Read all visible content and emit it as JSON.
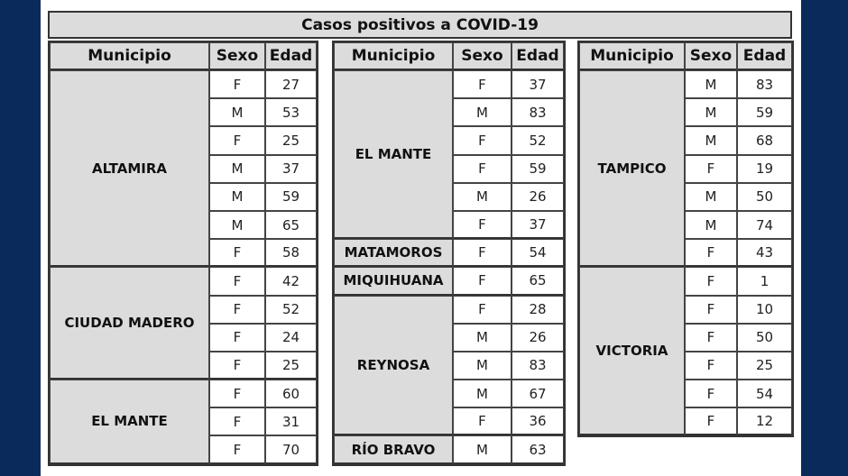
{
  "title": "Casos positivos a COVID-19",
  "headers": {
    "municipio": "Municipio",
    "sexo": "Sexo",
    "edad": "Edad"
  },
  "tables": [
    {
      "groups": [
        {
          "municipio": "ALTAMIRA",
          "rows": [
            [
              "F",
              "27"
            ],
            [
              "M",
              "53"
            ],
            [
              "F",
              "25"
            ],
            [
              "M",
              "37"
            ],
            [
              "M",
              "59"
            ],
            [
              "M",
              "65"
            ],
            [
              "F",
              "58"
            ]
          ]
        },
        {
          "municipio": "CIUDAD MADERO",
          "rows": [
            [
              "F",
              "42"
            ],
            [
              "F",
              "52"
            ],
            [
              "F",
              "24"
            ],
            [
              "F",
              "25"
            ]
          ]
        },
        {
          "municipio": "EL MANTE",
          "rows": [
            [
              "F",
              "60"
            ],
            [
              "F",
              "31"
            ],
            [
              "F",
              "70"
            ]
          ]
        }
      ]
    },
    {
      "groups": [
        {
          "municipio": "EL MANTE",
          "rows": [
            [
              "F",
              "37"
            ],
            [
              "M",
              "83"
            ],
            [
              "F",
              "52"
            ],
            [
              "F",
              "59"
            ],
            [
              "M",
              "26"
            ],
            [
              "F",
              "37"
            ]
          ]
        },
        {
          "municipio": "MATAMOROS",
          "rows": [
            [
              "F",
              "54"
            ]
          ]
        },
        {
          "municipio": "MIQUIHUANA",
          "rows": [
            [
              "F",
              "65"
            ]
          ]
        },
        {
          "municipio": "REYNOSA",
          "rows": [
            [
              "F",
              "28"
            ],
            [
              "M",
              "26"
            ],
            [
              "M",
              "83"
            ],
            [
              "M",
              "67"
            ],
            [
              "F",
              "36"
            ]
          ]
        },
        {
          "municipio": "RÍO BRAVO",
          "rows": [
            [
              "M",
              "63"
            ]
          ]
        }
      ]
    },
    {
      "groups": [
        {
          "municipio": "TAMPICO",
          "rows": [
            [
              "M",
              "83"
            ],
            [
              "M",
              "59"
            ],
            [
              "M",
              "68"
            ],
            [
              "F",
              "19"
            ],
            [
              "M",
              "50"
            ],
            [
              "M",
              "74"
            ],
            [
              "F",
              "43"
            ]
          ]
        },
        {
          "municipio": "VICTORIA",
          "rows": [
            [
              "F",
              "1"
            ],
            [
              "F",
              "10"
            ],
            [
              "F",
              "50"
            ],
            [
              "F",
              "25"
            ],
            [
              "F",
              "54"
            ],
            [
              "F",
              "12"
            ]
          ]
        }
      ]
    }
  ]
}
